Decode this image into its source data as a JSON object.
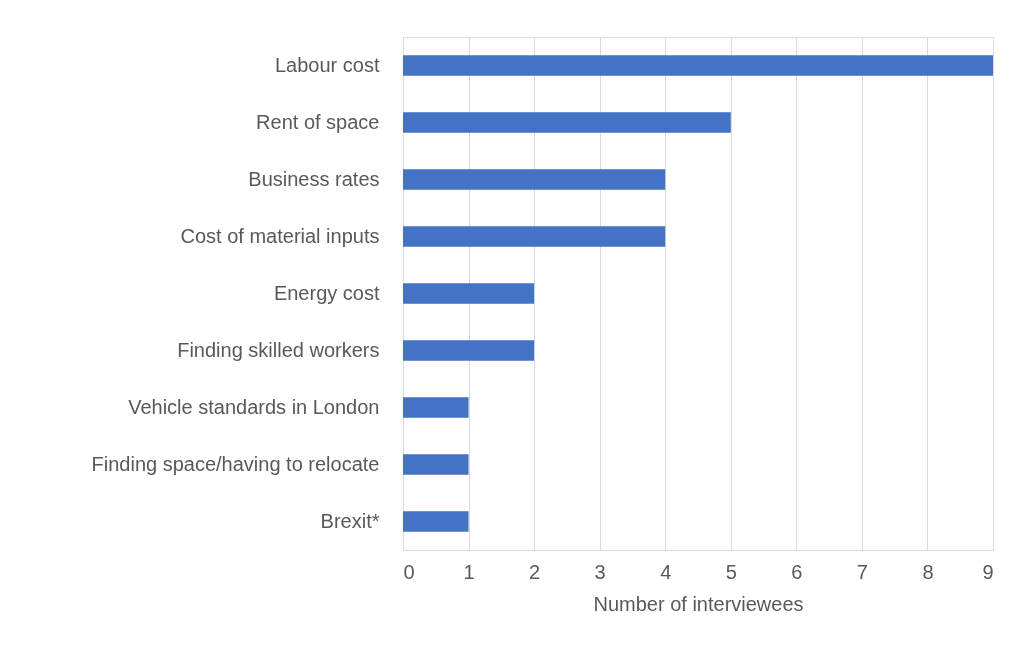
{
  "chart_data": {
    "type": "bar",
    "orientation": "horizontal",
    "xlabel": "Number of interviewees",
    "categories": [
      "Labour cost",
      "Rent of space",
      "Business rates",
      "Cost of material inputs",
      "Energy cost",
      "Finding skilled workers",
      "Vehicle standards in London",
      "Finding space/having to relocate",
      "Brexit*"
    ],
    "values": [
      9,
      5,
      4,
      4,
      2,
      2,
      1,
      1,
      1
    ],
    "color": "#4472c4",
    "xlim": [
      0,
      9
    ],
    "xticks": [
      0,
      1,
      2,
      3,
      4,
      5,
      6,
      7,
      8,
      9
    ],
    "grid": "x"
  }
}
